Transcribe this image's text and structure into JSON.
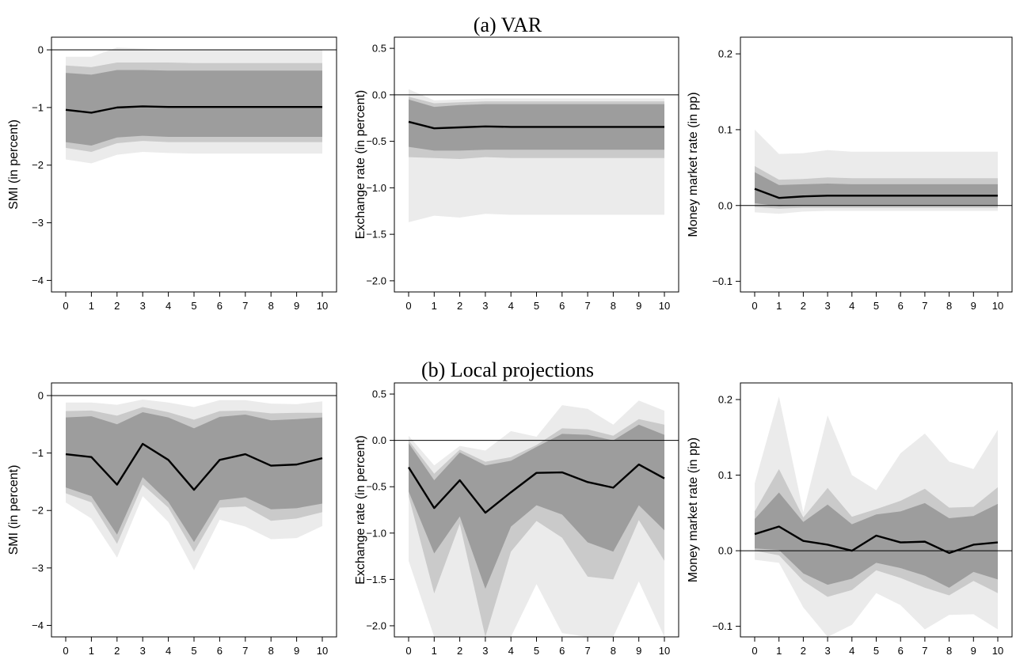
{
  "figure": {
    "panel_titles": [
      "(a) VAR",
      "(b) Local projections"
    ]
  },
  "style": {
    "band_colors": [
      "#ebebeb",
      "#cacaca",
      "#9d9d9d"
    ],
    "line_color": "#000000",
    "zero_line_color": "#000000"
  },
  "chart_data": [
    {
      "id": "var-smi",
      "type": "line",
      "panel": "(a) VAR",
      "ylabel": "SMI (in percent)",
      "x": [
        0,
        1,
        2,
        3,
        4,
        5,
        6,
        7,
        8,
        9,
        10
      ],
      "xticks": [
        0,
        1,
        2,
        3,
        4,
        5,
        6,
        7,
        8,
        9,
        10
      ],
      "ylim": [
        -4.2,
        0.22
      ],
      "yticks": [
        0,
        -1,
        -2,
        -3,
        -4
      ],
      "ytick_labels": [
        "0",
        "−1",
        "−2",
        "−3",
        "−4"
      ],
      "zero_line": 0,
      "show_zero_line": true,
      "median": [
        -1.04,
        -1.09,
        -1.0,
        -0.98,
        -0.99,
        -0.99,
        -0.99,
        -0.99,
        -0.99,
        -0.99,
        -0.99
      ],
      "bands": [
        {
          "level": "outer",
          "lower": [
            -1.9,
            -1.97,
            -1.82,
            -1.77,
            -1.79,
            -1.8,
            -1.8,
            -1.8,
            -1.8,
            -1.8,
            -1.8
          ],
          "upper": [
            -0.12,
            -0.12,
            0.04,
            0.02,
            0.0,
            0.0,
            0.0,
            0.0,
            0.0,
            0.0,
            0.0
          ]
        },
        {
          "level": "middle",
          "lower": [
            -1.7,
            -1.77,
            -1.62,
            -1.58,
            -1.6,
            -1.6,
            -1.6,
            -1.6,
            -1.6,
            -1.6,
            -1.6
          ],
          "upper": [
            -0.27,
            -0.3,
            -0.22,
            -0.22,
            -0.22,
            -0.23,
            -0.23,
            -0.23,
            -0.23,
            -0.23,
            -0.23
          ]
        },
        {
          "level": "inner",
          "lower": [
            -1.6,
            -1.66,
            -1.52,
            -1.49,
            -1.51,
            -1.51,
            -1.51,
            -1.51,
            -1.51,
            -1.51,
            -1.51
          ],
          "upper": [
            -0.4,
            -0.43,
            -0.35,
            -0.35,
            -0.36,
            -0.36,
            -0.36,
            -0.36,
            -0.36,
            -0.36,
            -0.36
          ]
        }
      ]
    },
    {
      "id": "var-fx",
      "type": "line",
      "panel": "(a) VAR",
      "ylabel": "Exchange rate (in percent)",
      "x": [
        0,
        1,
        2,
        3,
        4,
        5,
        6,
        7,
        8,
        9,
        10
      ],
      "xticks": [
        0,
        1,
        2,
        3,
        4,
        5,
        6,
        7,
        8,
        9,
        10
      ],
      "ylim": [
        -2.12,
        0.62
      ],
      "yticks": [
        0.5,
        0.0,
        -0.5,
        -1.0,
        -1.5,
        -2.0
      ],
      "ytick_labels": [
        "0.5",
        "0.0",
        "−0.5",
        "−1.0",
        "−1.5",
        "−2.0"
      ],
      "zero_line": 0,
      "show_zero_line": true,
      "median": [
        -0.29,
        -0.36,
        -0.35,
        -0.34,
        -0.345,
        -0.345,
        -0.345,
        -0.345,
        -0.345,
        -0.345,
        -0.345
      ],
      "bands": [
        {
          "level": "outer",
          "lower": [
            -1.37,
            -1.3,
            -1.32,
            -1.28,
            -1.29,
            -1.29,
            -1.29,
            -1.29,
            -1.29,
            -1.29,
            -1.29
          ],
          "upper": [
            0.06,
            -0.06,
            -0.05,
            -0.04,
            -0.04,
            -0.04,
            -0.04,
            -0.04,
            -0.04,
            -0.04,
            -0.04
          ]
        },
        {
          "level": "middle",
          "lower": [
            -0.67,
            -0.68,
            -0.69,
            -0.67,
            -0.68,
            -0.68,
            -0.68,
            -0.68,
            -0.68,
            -0.68,
            -0.68
          ],
          "upper": [
            -0.02,
            -0.09,
            -0.08,
            -0.07,
            -0.07,
            -0.07,
            -0.07,
            -0.07,
            -0.07,
            -0.07,
            -0.07
          ]
        },
        {
          "level": "inner",
          "lower": [
            -0.56,
            -0.6,
            -0.6,
            -0.59,
            -0.59,
            -0.59,
            -0.59,
            -0.59,
            -0.59,
            -0.59,
            -0.59
          ],
          "upper": [
            -0.05,
            -0.13,
            -0.11,
            -0.1,
            -0.1,
            -0.1,
            -0.1,
            -0.1,
            -0.1,
            -0.1,
            -0.1
          ]
        }
      ]
    },
    {
      "id": "var-mm",
      "type": "line",
      "panel": "(a) VAR",
      "ylabel": "Money market rate (in pp)",
      "x": [
        0,
        1,
        2,
        3,
        4,
        5,
        6,
        7,
        8,
        9,
        10
      ],
      "xticks": [
        0,
        1,
        2,
        3,
        4,
        5,
        6,
        7,
        8,
        9,
        10
      ],
      "ylim": [
        -0.114,
        0.222
      ],
      "yticks": [
        0.2,
        0.1,
        0.0,
        -0.1
      ],
      "ytick_labels": [
        "0.2",
        "0.1",
        "0.0",
        "−0.1"
      ],
      "zero_line": 0,
      "show_zero_line": true,
      "median": [
        0.022,
        0.01,
        0.012,
        0.013,
        0.013,
        0.013,
        0.013,
        0.013,
        0.013,
        0.013,
        0.013
      ],
      "bands": [
        {
          "level": "outer",
          "lower": [
            -0.009,
            -0.011,
            -0.008,
            -0.007,
            -0.007,
            -0.007,
            -0.007,
            -0.007,
            -0.007,
            -0.007,
            -0.007
          ],
          "upper": [
            0.1,
            0.068,
            0.069,
            0.073,
            0.071,
            0.071,
            0.071,
            0.071,
            0.071,
            0.071,
            0.071
          ]
        },
        {
          "level": "middle",
          "lower": [
            -0.002,
            -0.004,
            -0.003,
            -0.003,
            -0.003,
            -0.003,
            -0.003,
            -0.003,
            -0.003,
            -0.003,
            -0.003
          ],
          "upper": [
            0.052,
            0.034,
            0.035,
            0.037,
            0.036,
            0.036,
            0.036,
            0.036,
            0.036,
            0.036,
            0.036
          ]
        },
        {
          "level": "inner",
          "lower": [
            0.003,
            -0.001,
            0.0,
            0.0,
            0.0,
            0.0,
            0.0,
            0.0,
            0.0,
            0.0,
            0.0
          ],
          "upper": [
            0.044,
            0.027,
            0.028,
            0.029,
            0.028,
            0.028,
            0.028,
            0.028,
            0.028,
            0.028,
            0.028
          ]
        }
      ]
    },
    {
      "id": "lp-smi",
      "type": "line",
      "panel": "(b) Local projections",
      "ylabel": "SMI (in percent)",
      "x": [
        0,
        1,
        2,
        3,
        4,
        5,
        6,
        7,
        8,
        9,
        10
      ],
      "xticks": [
        0,
        1,
        2,
        3,
        4,
        5,
        6,
        7,
        8,
        9,
        10
      ],
      "ylim": [
        -4.2,
        0.22
      ],
      "yticks": [
        0,
        -1,
        -2,
        -3,
        -4
      ],
      "ytick_labels": [
        "0",
        "−1",
        "−2",
        "−3",
        "−4"
      ],
      "zero_line": 0,
      "show_zero_line": true,
      "median": [
        -1.02,
        -1.07,
        -1.55,
        -0.84,
        -1.12,
        -1.64,
        -1.12,
        -1.02,
        -1.22,
        -1.2,
        -1.09
      ],
      "bands": [
        {
          "level": "outer",
          "lower": [
            -1.86,
            -2.14,
            -2.82,
            -1.75,
            -2.2,
            -3.04,
            -2.16,
            -2.28,
            -2.5,
            -2.48,
            -2.27
          ],
          "upper": [
            -0.12,
            -0.12,
            -0.16,
            -0.07,
            -0.12,
            -0.2,
            -0.08,
            -0.08,
            -0.14,
            -0.15,
            -0.1
          ]
        },
        {
          "level": "middle",
          "lower": [
            -1.7,
            -1.86,
            -2.58,
            -1.55,
            -1.95,
            -2.72,
            -1.95,
            -1.93,
            -2.18,
            -2.14,
            -2.03
          ],
          "upper": [
            -0.27,
            -0.26,
            -0.35,
            -0.2,
            -0.29,
            -0.42,
            -0.27,
            -0.26,
            -0.31,
            -0.3,
            -0.3
          ]
        },
        {
          "level": "inner",
          "lower": [
            -1.6,
            -1.75,
            -2.42,
            -1.42,
            -1.85,
            -2.55,
            -1.82,
            -1.77,
            -1.98,
            -1.96,
            -1.88
          ],
          "upper": [
            -0.38,
            -0.36,
            -0.5,
            -0.29,
            -0.38,
            -0.57,
            -0.37,
            -0.33,
            -0.43,
            -0.41,
            -0.38
          ]
        }
      ]
    },
    {
      "id": "lp-fx",
      "type": "line",
      "panel": "(b) Local projections",
      "ylabel": "Exchange rate (in percent)",
      "x": [
        0,
        1,
        2,
        3,
        4,
        5,
        6,
        7,
        8,
        9,
        10
      ],
      "xticks": [
        0,
        1,
        2,
        3,
        4,
        5,
        6,
        7,
        8,
        9,
        10
      ],
      "ylim": [
        -2.12,
        0.62
      ],
      "yticks": [
        0.5,
        0.0,
        -0.5,
        -1.0,
        -1.5,
        -2.0
      ],
      "ytick_labels": [
        "0.5",
        "0.0",
        "−0.5",
        "−1.0",
        "−1.5",
        "−2.0"
      ],
      "zero_line": 0,
      "show_zero_line": true,
      "median": [
        -0.29,
        -0.73,
        -0.43,
        -0.78,
        -0.56,
        -0.35,
        -0.345,
        -0.45,
        -0.51,
        -0.26,
        -0.41
      ],
      "bands": [
        {
          "level": "outer",
          "lower": [
            -1.3,
            -2.12,
            -2.12,
            -2.12,
            -2.12,
            -1.55,
            -2.08,
            -2.12,
            -2.12,
            -1.52,
            -2.12
          ],
          "upper": [
            0.05,
            -0.27,
            -0.06,
            -0.11,
            0.1,
            0.04,
            0.38,
            0.34,
            0.17,
            0.43,
            0.32
          ]
        },
        {
          "level": "middle",
          "lower": [
            -0.6,
            -1.65,
            -0.9,
            -2.12,
            -1.2,
            -0.87,
            -1.05,
            -1.47,
            -1.5,
            -0.86,
            -1.3
          ],
          " upper": [
            0.0,
            -0.36,
            -0.1,
            -0.23,
            -0.18,
            -0.05,
            0.13,
            0.12,
            0.05,
            0.23,
            0.17
          ]
        },
        {
          "level": "inner",
          "lower": [
            -0.55,
            -1.22,
            -0.82,
            -1.6,
            -0.93,
            -0.7,
            -0.8,
            -1.1,
            -1.2,
            -0.7,
            -0.97
          ],
          "upper": [
            -0.03,
            -0.43,
            -0.13,
            -0.27,
            -0.22,
            -0.07,
            0.07,
            0.06,
            0.0,
            0.17,
            0.06
          ]
        }
      ]
    },
    {
      "id": "lp-mm",
      "type": "line",
      "panel": "(b) Local projections",
      "ylabel": "Money market rate (in pp)",
      "x": [
        0,
        1,
        2,
        3,
        4,
        5,
        6,
        7,
        8,
        9,
        10
      ],
      "xticks": [
        0,
        1,
        2,
        3,
        4,
        5,
        6,
        7,
        8,
        9,
        10
      ],
      "ylim": [
        -0.114,
        0.222
      ],
      "yticks": [
        0.2,
        0.1,
        0.0,
        -0.1
      ],
      "ytick_labels": [
        "0.2",
        "0.1",
        "0.0",
        "−0.1"
      ],
      "zero_line": 0,
      "show_zero_line": true,
      "median": [
        0.022,
        0.032,
        0.013,
        0.008,
        0.0,
        0.02,
        0.011,
        0.012,
        -0.003,
        0.008,
        0.011
      ],
      "bands": [
        {
          "level": "outer",
          "lower": [
            -0.012,
            -0.016,
            -0.075,
            -0.114,
            -0.098,
            -0.056,
            -0.072,
            -0.104,
            -0.085,
            -0.084,
            -0.104
          ],
          "upper": [
            0.089,
            0.204,
            0.051,
            0.179,
            0.1,
            0.08,
            0.129,
            0.155,
            0.118,
            0.108,
            0.16
          ]
        },
        {
          "level": "middle",
          "lower": [
            0.0,
            -0.006,
            -0.04,
            -0.061,
            -0.052,
            -0.026,
            -0.036,
            -0.049,
            -0.059,
            -0.04,
            -0.056
          ],
          "upper": [
            0.052,
            0.108,
            0.044,
            0.083,
            0.045,
            0.055,
            0.066,
            0.082,
            0.057,
            0.058,
            0.084
          ]
        },
        {
          "level": "inner",
          "lower": [
            0.003,
            0.001,
            -0.03,
            -0.045,
            -0.037,
            -0.016,
            -0.023,
            -0.033,
            -0.049,
            -0.028,
            -0.038
          ],
          "upper": [
            0.042,
            0.077,
            0.038,
            0.061,
            0.035,
            0.048,
            0.052,
            0.063,
            0.043,
            0.046,
            0.062
          ]
        }
      ]
    }
  ]
}
